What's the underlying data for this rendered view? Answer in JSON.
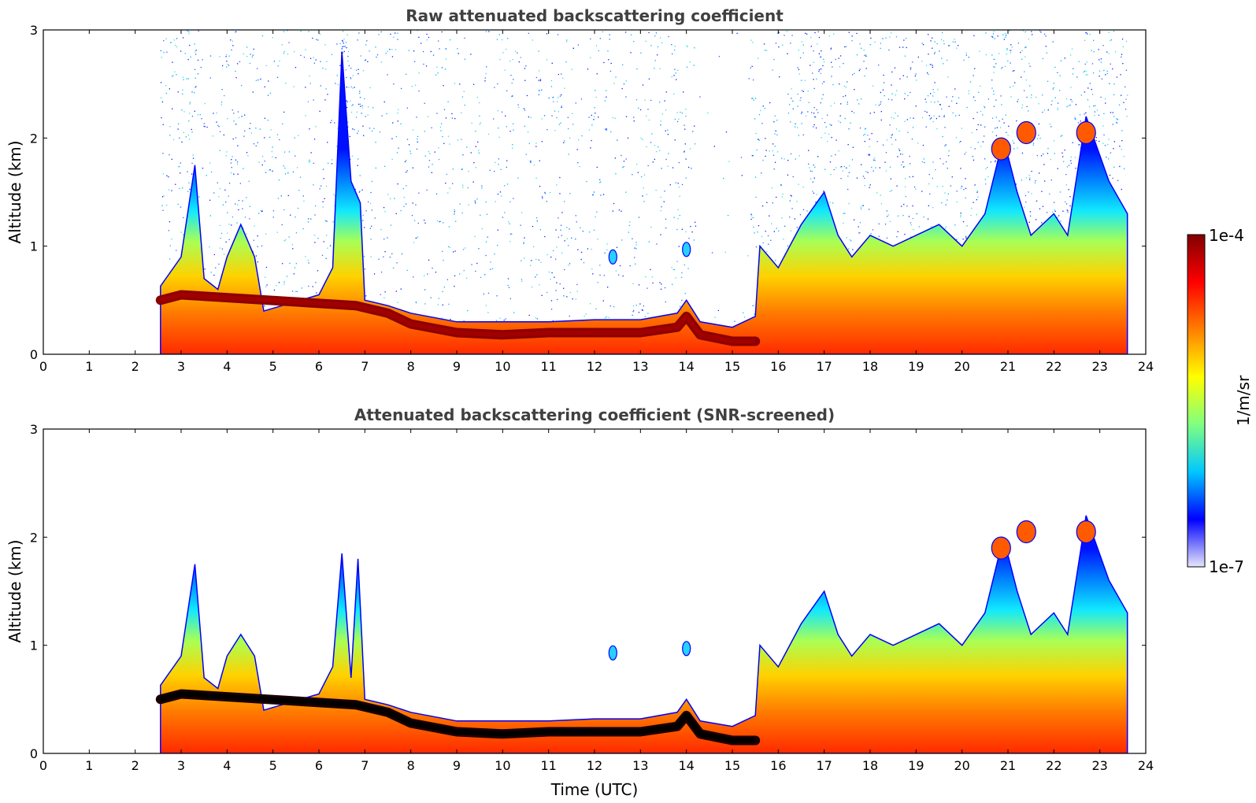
{
  "chart_data": [
    {
      "type": "heatmap",
      "title": "Raw attenuated backscattering coefficient",
      "xlabel": "",
      "ylabel": "Altitude (km)",
      "xlim": [
        0,
        24
      ],
      "ylim": [
        0,
        3
      ],
      "x_ticks": [
        "0",
        "1",
        "2",
        "3",
        "4",
        "5",
        "6",
        "7",
        "8",
        "9",
        "10",
        "11",
        "12",
        "13",
        "14",
        "15",
        "16",
        "17",
        "18",
        "19",
        "20",
        "21",
        "22",
        "23",
        "24"
      ],
      "y_ticks": [
        "0",
        "1",
        "2",
        "3"
      ],
      "data_start_utc": 2.55,
      "data_end_utc": 23.6,
      "screened": false,
      "layer_top_km": [
        [
          2.55,
          0.63
        ],
        [
          3.0,
          0.9
        ],
        [
          3.3,
          1.75
        ],
        [
          3.5,
          0.7
        ],
        [
          3.8,
          0.6
        ],
        [
          4.0,
          0.9
        ],
        [
          4.3,
          1.2
        ],
        [
          4.6,
          0.9
        ],
        [
          4.8,
          0.4
        ],
        [
          5.2,
          0.45
        ],
        [
          5.6,
          0.5
        ],
        [
          6.0,
          0.55
        ],
        [
          6.3,
          0.8
        ],
        [
          6.5,
          2.8
        ],
        [
          6.7,
          1.6
        ],
        [
          6.9,
          1.4
        ],
        [
          7.0,
          0.5
        ],
        [
          7.5,
          0.45
        ],
        [
          8.0,
          0.38
        ],
        [
          9.0,
          0.3
        ],
        [
          10.0,
          0.3
        ],
        [
          11.0,
          0.3
        ],
        [
          12.0,
          0.32
        ],
        [
          13.0,
          0.32
        ],
        [
          13.8,
          0.38
        ],
        [
          14.0,
          0.5
        ],
        [
          14.3,
          0.3
        ],
        [
          15.0,
          0.25
        ],
        [
          15.5,
          0.35
        ],
        [
          15.6,
          1.0
        ],
        [
          16.0,
          0.8
        ],
        [
          16.5,
          1.2
        ],
        [
          17.0,
          1.5
        ],
        [
          17.3,
          1.1
        ],
        [
          17.6,
          0.9
        ],
        [
          18.0,
          1.1
        ],
        [
          18.5,
          1.0
        ],
        [
          19.0,
          1.1
        ],
        [
          19.5,
          1.2
        ],
        [
          20.0,
          1.0
        ],
        [
          20.5,
          1.3
        ],
        [
          20.9,
          2.0
        ],
        [
          21.2,
          1.5
        ],
        [
          21.5,
          1.1
        ],
        [
          22.0,
          1.3
        ],
        [
          22.3,
          1.1
        ],
        [
          22.7,
          2.2
        ],
        [
          23.2,
          1.6
        ],
        [
          23.6,
          1.3
        ]
      ],
      "dense_layer_km": [
        [
          2.55,
          0.5
        ],
        [
          3.0,
          0.55
        ],
        [
          6.8,
          0.45
        ],
        [
          7.5,
          0.38
        ],
        [
          8.0,
          0.28
        ],
        [
          9.0,
          0.2
        ],
        [
          10.0,
          0.18
        ],
        [
          11.0,
          0.2
        ],
        [
          12.0,
          0.2
        ],
        [
          13.0,
          0.2
        ],
        [
          13.8,
          0.25
        ],
        [
          14.0,
          0.35
        ],
        [
          14.3,
          0.18
        ],
        [
          15.0,
          0.12
        ],
        [
          15.5,
          0.12
        ]
      ],
      "elevated_features": [
        {
          "time_utc": 12.4,
          "altitude_km": 0.9
        },
        {
          "time_utc": 14.0,
          "altitude_km": 0.97
        },
        {
          "time_utc": 20.85,
          "altitude_km": 1.9
        },
        {
          "time_utc": 21.4,
          "altitude_km": 2.05
        },
        {
          "time_utc": 22.7,
          "altitude_km": 2.05
        }
      ]
    },
    {
      "type": "heatmap",
      "title": "Attenuated backscattering coefficient (SNR-screened)",
      "xlabel": "Time (UTC)",
      "ylabel": "Altitude (km)",
      "xlim": [
        0,
        24
      ],
      "ylim": [
        0,
        3
      ],
      "x_ticks": [
        "0",
        "1",
        "2",
        "3",
        "4",
        "5",
        "6",
        "7",
        "8",
        "9",
        "10",
        "11",
        "12",
        "13",
        "14",
        "15",
        "16",
        "17",
        "18",
        "19",
        "20",
        "21",
        "22",
        "23",
        "24"
      ],
      "y_ticks": [
        "0",
        "1",
        "2",
        "3"
      ],
      "data_start_utc": 2.55,
      "data_end_utc": 23.6,
      "screened": true,
      "layer_top_km": [
        [
          2.55,
          0.63
        ],
        [
          3.0,
          0.9
        ],
        [
          3.3,
          1.75
        ],
        [
          3.5,
          0.7
        ],
        [
          3.8,
          0.6
        ],
        [
          4.0,
          0.9
        ],
        [
          4.3,
          1.1
        ],
        [
          4.6,
          0.9
        ],
        [
          4.8,
          0.4
        ],
        [
          5.2,
          0.45
        ],
        [
          5.6,
          0.5
        ],
        [
          6.0,
          0.55
        ],
        [
          6.3,
          0.8
        ],
        [
          6.5,
          1.85
        ],
        [
          6.7,
          0.7
        ],
        [
          6.85,
          1.8
        ],
        [
          7.0,
          0.5
        ],
        [
          7.5,
          0.45
        ],
        [
          8.0,
          0.38
        ],
        [
          9.0,
          0.3
        ],
        [
          10.0,
          0.3
        ],
        [
          11.0,
          0.3
        ],
        [
          12.0,
          0.32
        ],
        [
          13.0,
          0.32
        ],
        [
          13.8,
          0.38
        ],
        [
          14.0,
          0.5
        ],
        [
          14.3,
          0.3
        ],
        [
          15.0,
          0.25
        ],
        [
          15.5,
          0.35
        ],
        [
          15.6,
          1.0
        ],
        [
          16.0,
          0.8
        ],
        [
          16.5,
          1.2
        ],
        [
          17.0,
          1.5
        ],
        [
          17.3,
          1.1
        ],
        [
          17.6,
          0.9
        ],
        [
          18.0,
          1.1
        ],
        [
          18.5,
          1.0
        ],
        [
          19.0,
          1.1
        ],
        [
          19.5,
          1.2
        ],
        [
          20.0,
          1.0
        ],
        [
          20.5,
          1.3
        ],
        [
          20.9,
          2.0
        ],
        [
          21.2,
          1.5
        ],
        [
          21.5,
          1.1
        ],
        [
          22.0,
          1.3
        ],
        [
          22.3,
          1.1
        ],
        [
          22.7,
          2.2
        ],
        [
          23.2,
          1.6
        ],
        [
          23.6,
          1.3
        ]
      ],
      "dense_layer_km": [
        [
          2.55,
          0.5
        ],
        [
          3.0,
          0.55
        ],
        [
          6.8,
          0.45
        ],
        [
          7.5,
          0.38
        ],
        [
          8.0,
          0.28
        ],
        [
          9.0,
          0.2
        ],
        [
          10.0,
          0.18
        ],
        [
          11.0,
          0.2
        ],
        [
          12.0,
          0.2
        ],
        [
          13.0,
          0.2
        ],
        [
          13.8,
          0.25
        ],
        [
          14.0,
          0.35
        ],
        [
          14.3,
          0.18
        ],
        [
          15.0,
          0.12
        ],
        [
          15.5,
          0.12
        ]
      ],
      "elevated_features": [
        {
          "time_utc": 12.4,
          "altitude_km": 0.93
        },
        {
          "time_utc": 14.0,
          "altitude_km": 0.97
        },
        {
          "time_utc": 20.85,
          "altitude_km": 1.9
        },
        {
          "time_utc": 21.4,
          "altitude_km": 2.05
        },
        {
          "time_utc": 22.7,
          "altitude_km": 2.05
        }
      ]
    }
  ],
  "colorbar": {
    "min_label": "1e-7",
    "max_label": "1e-4",
    "label": "1/m/sr",
    "colors": [
      "#e6e6fa",
      "#0000ff",
      "#00c8ff",
      "#80ff80",
      "#ffff00",
      "#ff8000",
      "#ff0000",
      "#800000"
    ]
  }
}
